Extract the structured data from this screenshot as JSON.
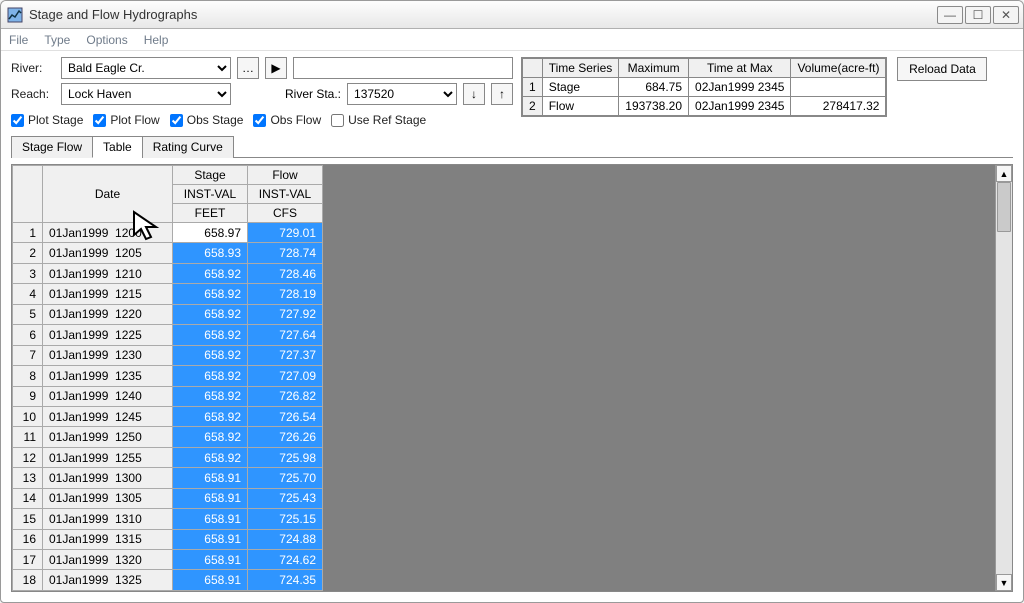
{
  "window": {
    "title": "Stage and Flow Hydrographs"
  },
  "menu": {
    "file": "File",
    "type": "Type",
    "options": "Options",
    "help": "Help"
  },
  "labels": {
    "river": "River:",
    "reach": "Reach:",
    "river_sta": "River Sta.:"
  },
  "selects": {
    "river": "Bald Eagle Cr.",
    "reach": "Lock Haven",
    "river_sta": "137520"
  },
  "buttons": {
    "down_arrow": "↓",
    "up_arrow": "↑",
    "reload": "Reload Data",
    "play": "▶"
  },
  "checks": {
    "plot_stage": "Plot Stage",
    "plot_flow": "Plot Flow",
    "obs_stage": "Obs Stage",
    "obs_flow": "Obs Flow",
    "use_ref": "Use Ref Stage"
  },
  "summary": {
    "headers": [
      "Time Series",
      "Maximum",
      "Time at Max",
      "Volume(acre-ft)"
    ],
    "rows": [
      {
        "n": "1",
        "name": "Stage",
        "max": "684.75",
        "time": "02Jan1999  2345",
        "vol": ""
      },
      {
        "n": "2",
        "name": "Flow",
        "max": "193738.20",
        "time": "02Jan1999  2345",
        "vol": "278417.32"
      }
    ]
  },
  "tabs": {
    "stage_flow": "Stage Flow",
    "table": "Table",
    "rating": "Rating Curve"
  },
  "grid": {
    "headers": {
      "date": "Date",
      "stage": "Stage",
      "flow": "Flow",
      "stage2": "INST-VAL",
      "flow2": "INST-VAL",
      "stage3": "FEET",
      "flow3": "CFS"
    },
    "rows": [
      {
        "n": "1",
        "date": "01Jan1999  1200",
        "stage": "658.97",
        "flow": "729.01",
        "first": true
      },
      {
        "n": "2",
        "date": "01Jan1999  1205",
        "stage": "658.93",
        "flow": "728.74"
      },
      {
        "n": "3",
        "date": "01Jan1999  1210",
        "stage": "658.92",
        "flow": "728.46"
      },
      {
        "n": "4",
        "date": "01Jan1999  1215",
        "stage": "658.92",
        "flow": "728.19"
      },
      {
        "n": "5",
        "date": "01Jan1999  1220",
        "stage": "658.92",
        "flow": "727.92"
      },
      {
        "n": "6",
        "date": "01Jan1999  1225",
        "stage": "658.92",
        "flow": "727.64"
      },
      {
        "n": "7",
        "date": "01Jan1999  1230",
        "stage": "658.92",
        "flow": "727.37"
      },
      {
        "n": "8",
        "date": "01Jan1999  1235",
        "stage": "658.92",
        "flow": "727.09"
      },
      {
        "n": "9",
        "date": "01Jan1999  1240",
        "stage": "658.92",
        "flow": "726.82"
      },
      {
        "n": "10",
        "date": "01Jan1999  1245",
        "stage": "658.92",
        "flow": "726.54"
      },
      {
        "n": "11",
        "date": "01Jan1999  1250",
        "stage": "658.92",
        "flow": "726.26"
      },
      {
        "n": "12",
        "date": "01Jan1999  1255",
        "stage": "658.92",
        "flow": "725.98"
      },
      {
        "n": "13",
        "date": "01Jan1999  1300",
        "stage": "658.91",
        "flow": "725.70"
      },
      {
        "n": "14",
        "date": "01Jan1999  1305",
        "stage": "658.91",
        "flow": "725.43"
      },
      {
        "n": "15",
        "date": "01Jan1999  1310",
        "stage": "658.91",
        "flow": "725.15"
      },
      {
        "n": "16",
        "date": "01Jan1999  1315",
        "stage": "658.91",
        "flow": "724.88"
      },
      {
        "n": "17",
        "date": "01Jan1999  1320",
        "stage": "658.91",
        "flow": "724.62"
      },
      {
        "n": "18",
        "date": "01Jan1999  1325",
        "stage": "658.91",
        "flow": "724.35"
      }
    ]
  }
}
